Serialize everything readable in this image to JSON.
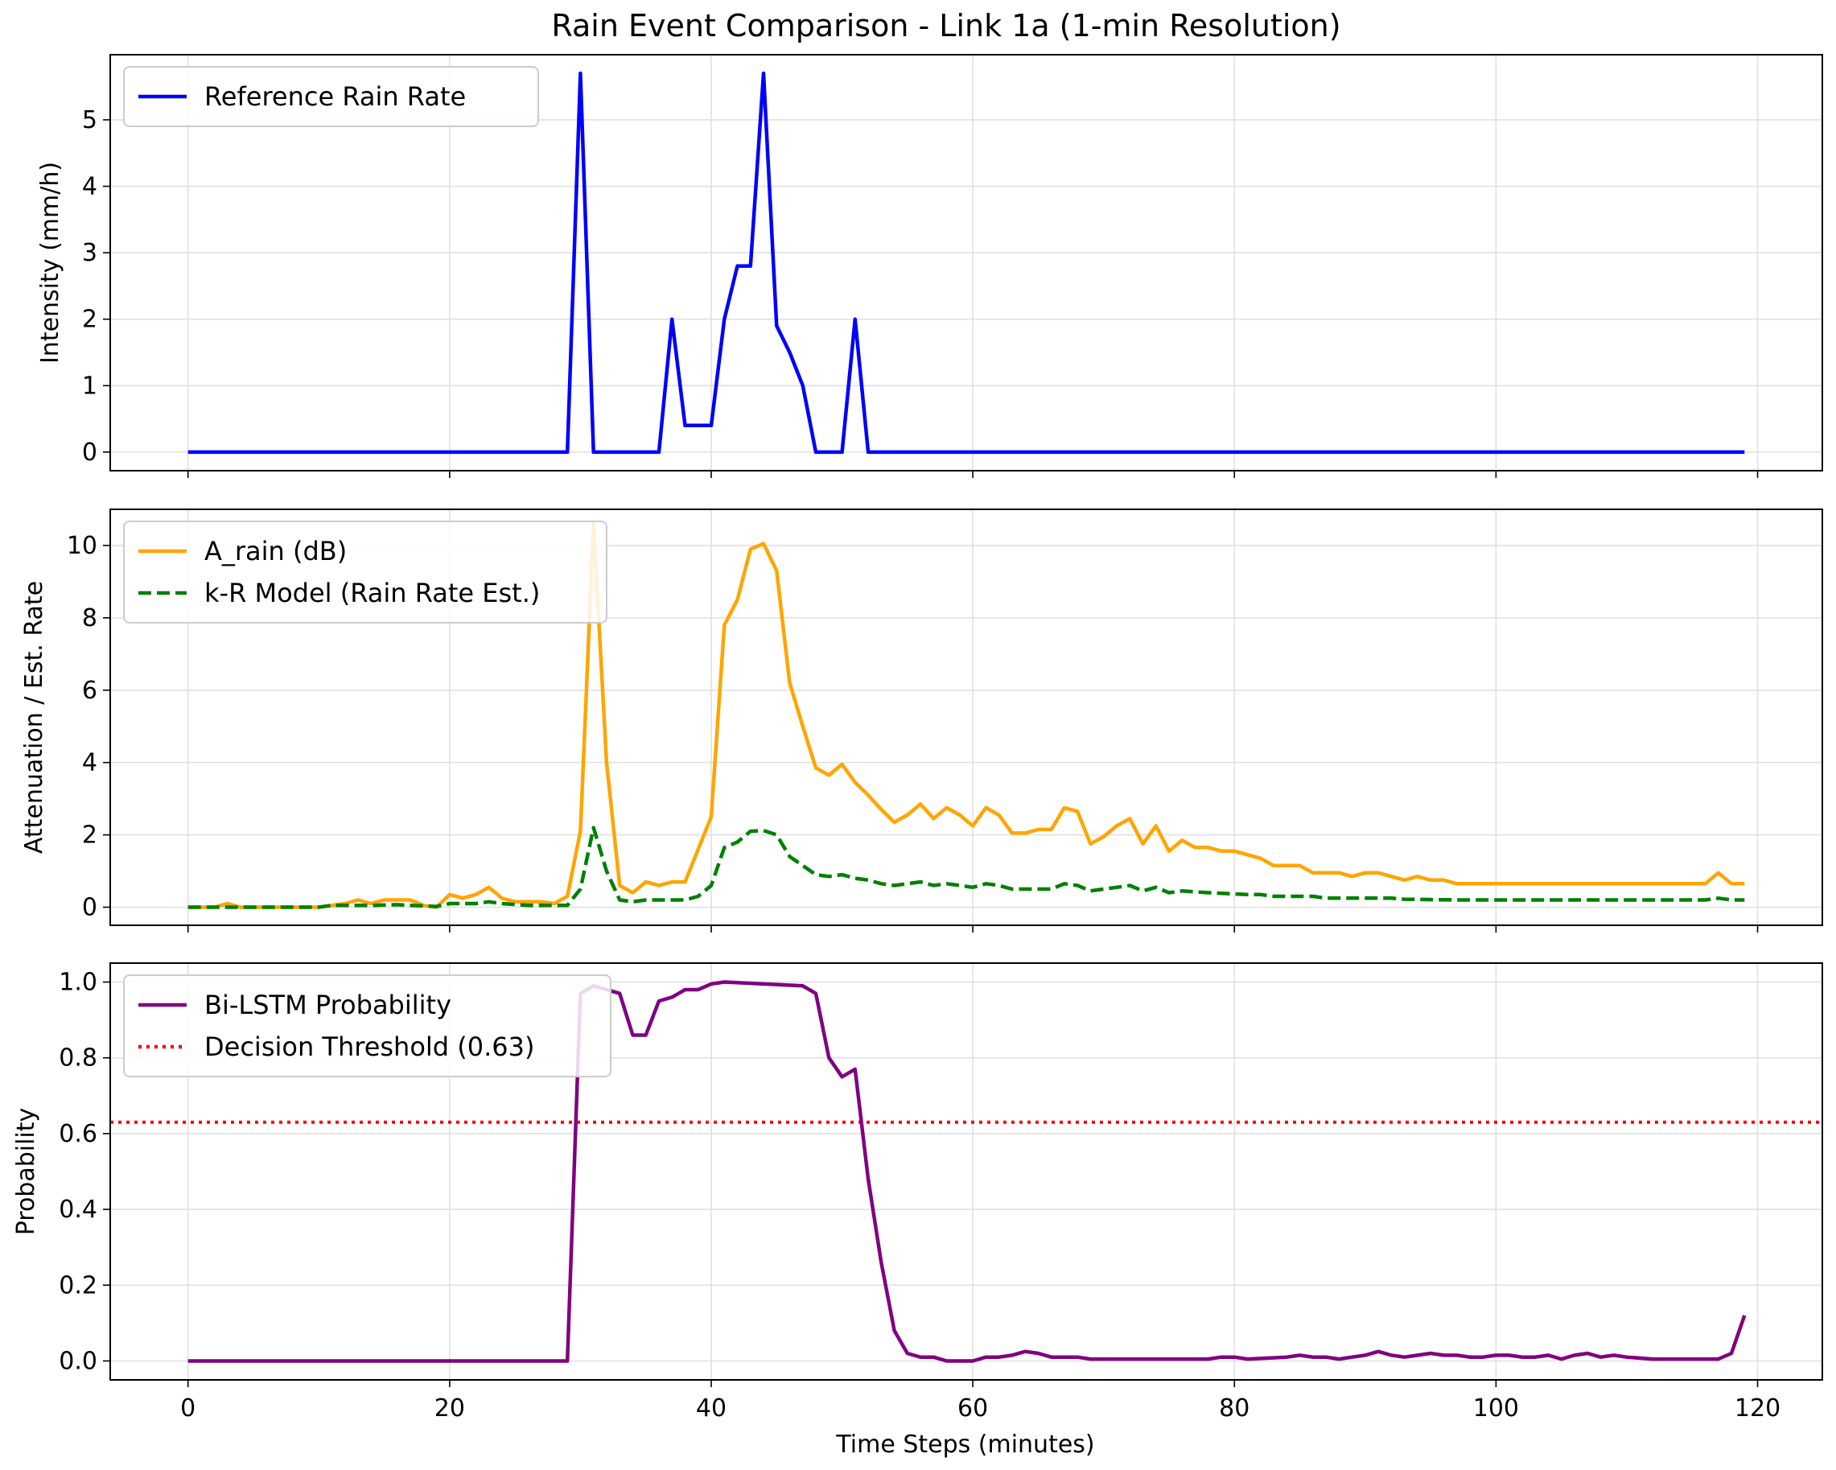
{
  "figure": {
    "title": "Rain Event Comparison - Link 1a (1-min Resolution)",
    "xlabel": "Time Steps (minutes)"
  },
  "chart_data": [
    {
      "type": "line",
      "ylabel": "Intensity (mm/h)",
      "xlim": [
        -5.95,
        124.95
      ],
      "ylim": [
        -0.28,
        5.98
      ],
      "xticks": [
        0,
        20,
        40,
        60,
        80,
        100,
        120
      ],
      "yticks": [
        0,
        1,
        2,
        3,
        4,
        5
      ],
      "grid": true,
      "legend_position": "upper left",
      "series": [
        {
          "name": "Reference Rain Rate",
          "color": "#0000ff",
          "style": "solid",
          "points": [
            [
              0,
              0
            ],
            [
              29,
              0
            ],
            [
              30,
              5.7
            ],
            [
              31,
              0
            ],
            [
              36,
              0
            ],
            [
              37,
              2.0
            ],
            [
              38,
              0.4
            ],
            [
              40,
              0.4
            ],
            [
              41,
              2.0
            ],
            [
              42,
              2.8
            ],
            [
              43,
              2.8
            ],
            [
              44,
              5.7
            ],
            [
              45,
              1.9
            ],
            [
              46,
              1.5
            ],
            [
              47,
              1.0
            ],
            [
              48,
              0
            ],
            [
              50,
              0
            ],
            [
              51,
              2.0
            ],
            [
              52,
              0
            ],
            [
              119,
              0
            ]
          ]
        }
      ]
    },
    {
      "type": "line",
      "ylabel": "Attenuation / Est. Rate",
      "xlim": [
        -5.95,
        124.95
      ],
      "ylim": [
        -0.5,
        11.0
      ],
      "xticks": [
        0,
        20,
        40,
        60,
        80,
        100,
        120
      ],
      "yticks": [
        0,
        2,
        4,
        6,
        8,
        10
      ],
      "grid": true,
      "legend_position": "upper left",
      "series": [
        {
          "name": "A_rain (dB)",
          "color": "#ffa500",
          "style": "solid",
          "points": [
            [
              0,
              0
            ],
            [
              2,
              0
            ],
            [
              3,
              0.1
            ],
            [
              4,
              0
            ],
            [
              10,
              0
            ],
            [
              12,
              0.1
            ],
            [
              13,
              0.2
            ],
            [
              14,
              0.1
            ],
            [
              15,
              0.2
            ],
            [
              17,
              0.2
            ],
            [
              18,
              0.05
            ],
            [
              19,
              0
            ],
            [
              20,
              0.35
            ],
            [
              21,
              0.25
            ],
            [
              22,
              0.35
            ],
            [
              23,
              0.55
            ],
            [
              24,
              0.25
            ],
            [
              25,
              0.15
            ],
            [
              27,
              0.15
            ],
            [
              28,
              0.1
            ],
            [
              29,
              0.3
            ],
            [
              30,
              2.1
            ],
            [
              31,
              10.6
            ],
            [
              32,
              4.0
            ],
            [
              33,
              0.6
            ],
            [
              34,
              0.4
            ],
            [
              35,
              0.7
            ],
            [
              36,
              0.6
            ],
            [
              37,
              0.7
            ],
            [
              38,
              0.7
            ],
            [
              40,
              2.5
            ],
            [
              41,
              7.8
            ],
            [
              42,
              8.5
            ],
            [
              43,
              9.9
            ],
            [
              44,
              10.05
            ],
            [
              45,
              9.3
            ],
            [
              46,
              6.2
            ],
            [
              47,
              5.0
            ],
            [
              48,
              3.85
            ],
            [
              49,
              3.65
            ],
            [
              50,
              3.95
            ],
            [
              51,
              3.45
            ],
            [
              52,
              3.1
            ],
            [
              53,
              2.7
            ],
            [
              54,
              2.35
            ],
            [
              55,
              2.55
            ],
            [
              56,
              2.85
            ],
            [
              57,
              2.45
            ],
            [
              58,
              2.75
            ],
            [
              59,
              2.55
            ],
            [
              60,
              2.25
            ],
            [
              61,
              2.75
            ],
            [
              62,
              2.55
            ],
            [
              63,
              2.05
            ],
            [
              64,
              2.05
            ],
            [
              65,
              2.15
            ],
            [
              66,
              2.15
            ],
            [
              67,
              2.75
            ],
            [
              68,
              2.65
            ],
            [
              69,
              1.75
            ],
            [
              70,
              1.95
            ],
            [
              71,
              2.25
            ],
            [
              72,
              2.45
            ],
            [
              73,
              1.75
            ],
            [
              74,
              2.25
            ],
            [
              75,
              1.55
            ],
            [
              76,
              1.85
            ],
            [
              77,
              1.65
            ],
            [
              78,
              1.65
            ],
            [
              79,
              1.55
            ],
            [
              80,
              1.55
            ],
            [
              81,
              1.45
            ],
            [
              82,
              1.35
            ],
            [
              83,
              1.15
            ],
            [
              84,
              1.15
            ],
            [
              85,
              1.15
            ],
            [
              86,
              0.95
            ],
            [
              87,
              0.95
            ],
            [
              88,
              0.95
            ],
            [
              89,
              0.85
            ],
            [
              90,
              0.95
            ],
            [
              91,
              0.95
            ],
            [
              92,
              0.85
            ],
            [
              93,
              0.75
            ],
            [
              94,
              0.85
            ],
            [
              95,
              0.75
            ],
            [
              96,
              0.75
            ],
            [
              97,
              0.65
            ],
            [
              116,
              0.65
            ],
            [
              117,
              0.95
            ],
            [
              118,
              0.65
            ],
            [
              119,
              0.65
            ]
          ]
        },
        {
          "name": "k-R Model (Rain Rate Est.)",
          "color": "#008000",
          "style": "dashed",
          "points": [
            [
              0,
              0
            ],
            [
              10,
              0
            ],
            [
              11,
              0.05
            ],
            [
              14,
              0.05
            ],
            [
              16,
              0.07
            ],
            [
              17,
              0.05
            ],
            [
              19,
              0.02
            ],
            [
              20,
              0.1
            ],
            [
              22,
              0.1
            ],
            [
              23,
              0.15
            ],
            [
              24,
              0.1
            ],
            [
              26,
              0.05
            ],
            [
              29,
              0.05
            ],
            [
              30,
              0.5
            ],
            [
              31,
              2.2
            ],
            [
              32,
              1.0
            ],
            [
              33,
              0.2
            ],
            [
              34,
              0.15
            ],
            [
              35,
              0.2
            ],
            [
              36,
              0.2
            ],
            [
              37,
              0.2
            ],
            [
              38,
              0.2
            ],
            [
              39,
              0.3
            ],
            [
              40,
              0.6
            ],
            [
              41,
              1.65
            ],
            [
              42,
              1.8
            ],
            [
              43,
              2.1
            ],
            [
              44,
              2.12
            ],
            [
              45,
              2.0
            ],
            [
              46,
              1.4
            ],
            [
              47,
              1.15
            ],
            [
              48,
              0.9
            ],
            [
              49,
              0.85
            ],
            [
              50,
              0.9
            ],
            [
              51,
              0.8
            ],
            [
              52,
              0.75
            ],
            [
              53,
              0.65
            ],
            [
              54,
              0.6
            ],
            [
              55,
              0.65
            ],
            [
              56,
              0.7
            ],
            [
              57,
              0.6
            ],
            [
              58,
              0.65
            ],
            [
              59,
              0.6
            ],
            [
              60,
              0.55
            ],
            [
              61,
              0.65
            ],
            [
              62,
              0.6
            ],
            [
              63,
              0.5
            ],
            [
              66,
              0.5
            ],
            [
              67,
              0.65
            ],
            [
              68,
              0.6
            ],
            [
              69,
              0.45
            ],
            [
              70,
              0.5
            ],
            [
              71,
              0.55
            ],
            [
              72,
              0.6
            ],
            [
              73,
              0.45
            ],
            [
              74,
              0.55
            ],
            [
              75,
              0.4
            ],
            [
              76,
              0.45
            ],
            [
              78,
              0.4
            ],
            [
              81,
              0.35
            ],
            [
              82,
              0.35
            ],
            [
              83,
              0.3
            ],
            [
              86,
              0.3
            ],
            [
              87,
              0.25
            ],
            [
              92,
              0.25
            ],
            [
              93,
              0.22
            ],
            [
              97,
              0.2
            ],
            [
              116,
              0.2
            ],
            [
              117,
              0.25
            ],
            [
              118,
              0.2
            ],
            [
              119,
              0.2
            ]
          ]
        }
      ]
    },
    {
      "type": "line",
      "ylabel": "Probability",
      "xlim": [
        -5.95,
        124.95
      ],
      "ylim": [
        -0.05,
        1.05
      ],
      "xticks": [
        0,
        20,
        40,
        60,
        80,
        100,
        120
      ],
      "yticks": [
        0.0,
        0.2,
        0.4,
        0.6,
        0.8,
        1.0
      ],
      "grid": true,
      "legend_position": "upper left",
      "threshold": {
        "name": "Decision Threshold (0.63)",
        "value": 0.63,
        "color": "#ff0000",
        "style": "dotted"
      },
      "series": [
        {
          "name": "Bi-LSTM Probability",
          "color": "#800080",
          "style": "solid",
          "points": [
            [
              0,
              0
            ],
            [
              29,
              0
            ],
            [
              30,
              0.97
            ],
            [
              31,
              0.99
            ],
            [
              32,
              0.98
            ],
            [
              33,
              0.97
            ],
            [
              34,
              0.86
            ],
            [
              35,
              0.86
            ],
            [
              36,
              0.95
            ],
            [
              37,
              0.96
            ],
            [
              38,
              0.98
            ],
            [
              39,
              0.98
            ],
            [
              40,
              0.995
            ],
            [
              41,
              1.0
            ],
            [
              47,
              0.99
            ],
            [
              48,
              0.97
            ],
            [
              49,
              0.8
            ],
            [
              50,
              0.75
            ],
            [
              51,
              0.77
            ],
            [
              52,
              0.48
            ],
            [
              53,
              0.26
            ],
            [
              54,
              0.08
            ],
            [
              55,
              0.02
            ],
            [
              56,
              0.01
            ],
            [
              57,
              0.01
            ],
            [
              58,
              0.0
            ],
            [
              60,
              0.0
            ],
            [
              61,
              0.01
            ],
            [
              62,
              0.01
            ],
            [
              63,
              0.015
            ],
            [
              64,
              0.025
            ],
            [
              65,
              0.02
            ],
            [
              66,
              0.01
            ],
            [
              68,
              0.01
            ],
            [
              69,
              0.005
            ],
            [
              75,
              0.005
            ],
            [
              78,
              0.005
            ],
            [
              79,
              0.01
            ],
            [
              80,
              0.01
            ],
            [
              81,
              0.005
            ],
            [
              84,
              0.01
            ],
            [
              85,
              0.015
            ],
            [
              86,
              0.01
            ],
            [
              87,
              0.01
            ],
            [
              88,
              0.005
            ],
            [
              89,
              0.01
            ],
            [
              90,
              0.015
            ],
            [
              91,
              0.025
            ],
            [
              92,
              0.015
            ],
            [
              93,
              0.01
            ],
            [
              94,
              0.015
            ],
            [
              95,
              0.02
            ],
            [
              96,
              0.015
            ],
            [
              97,
              0.015
            ],
            [
              98,
              0.01
            ],
            [
              99,
              0.01
            ],
            [
              100,
              0.015
            ],
            [
              101,
              0.015
            ],
            [
              102,
              0.01
            ],
            [
              103,
              0.01
            ],
            [
              104,
              0.015
            ],
            [
              105,
              0.005
            ],
            [
              106,
              0.015
            ],
            [
              107,
              0.02
            ],
            [
              108,
              0.01
            ],
            [
              109,
              0.015
            ],
            [
              110,
              0.01
            ],
            [
              112,
              0.005
            ],
            [
              116,
              0.005
            ],
            [
              117,
              0.005
            ],
            [
              118,
              0.02
            ],
            [
              119,
              0.12
            ]
          ]
        }
      ]
    }
  ]
}
